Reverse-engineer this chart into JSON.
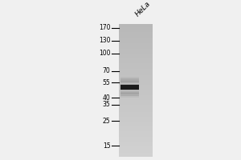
{
  "bg_color": "#f0f0f0",
  "lane_label": "HeLa",
  "markers": [
    170,
    130,
    100,
    70,
    55,
    40,
    35,
    25,
    15
  ],
  "band_kda": 50,
  "band_color": "#1c1c1c",
  "gel_gray_dark": 0.72,
  "gel_gray_light": 0.82,
  "lane_label_fontsize": 6.5,
  "marker_fontsize": 5.5
}
